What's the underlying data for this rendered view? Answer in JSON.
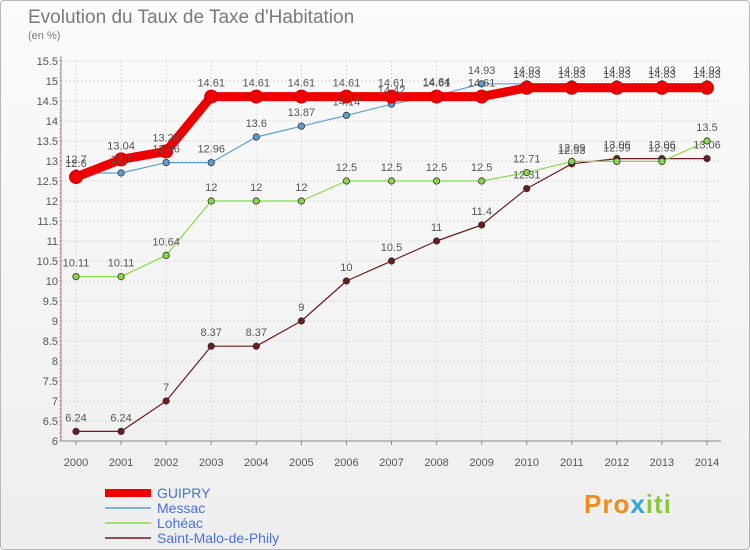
{
  "chart_data": {
    "type": "line",
    "title": "Evolution du Taux de Taxe d'Habitation",
    "subtitle": "(en %)",
    "x": [
      "2000",
      "2001",
      "2002",
      "2003",
      "2004",
      "2005",
      "2006",
      "2007",
      "2008",
      "2009",
      "2010",
      "2011",
      "2012",
      "2013",
      "2014"
    ],
    "ylim": [
      6,
      15.5
    ],
    "yticks": [
      "6",
      "6.5",
      "7",
      "7.5",
      "8",
      "8.5",
      "9",
      "9.5",
      "10",
      "10.5",
      "11",
      "11.5",
      "12",
      "12.5",
      "13",
      "13.5",
      "14",
      "14.5",
      "15",
      "15.5"
    ],
    "grid": true,
    "legend_position": "bottom-left",
    "series": [
      {
        "name": "GUIPRY",
        "color": "#ee0000",
        "values": [
          12.6,
          13.04,
          13.24,
          14.61,
          14.61,
          14.61,
          14.61,
          14.61,
          14.61,
          14.61,
          14.83,
          14.83,
          14.83,
          14.83,
          14.83
        ],
        "labels": [
          "12.6",
          "13.04",
          "13.24",
          "14.61",
          "14.61",
          "14.61",
          "14.61",
          "14.61",
          "14.61",
          "14.61",
          "14.83",
          "14.83",
          "14.83",
          "14.83",
          "14.83"
        ]
      },
      {
        "name": "Messac",
        "color": "#5b9fd1",
        "values": [
          12.7,
          12.7,
          12.96,
          12.96,
          13.6,
          13.87,
          14.14,
          14.42,
          14.64,
          14.93,
          14.93,
          14.93,
          14.93,
          14.93,
          14.93
        ],
        "labels": [
          "12.7",
          "12.7",
          "12.96",
          "12.96",
          "13.6",
          "13.87",
          "14.14",
          "14.42",
          "14.64",
          "14.93",
          "14.93",
          "14.93",
          "14.93",
          "14.93",
          "14.93"
        ]
      },
      {
        "name": "Lohéac",
        "color": "#88d84a",
        "values": [
          10.11,
          10.11,
          10.64,
          12,
          12,
          12,
          12.5,
          12.5,
          12.5,
          12.5,
          12.71,
          12.99,
          12.99,
          12.99,
          13.5
        ],
        "labels": [
          "10.11",
          "10.11",
          "10.64",
          "12",
          "12",
          "12",
          "12.5",
          "12.5",
          "12.5",
          "12.5",
          "12.71",
          "12.99",
          "12.99",
          "12.99",
          "13.5"
        ]
      },
      {
        "name": "Saint-Malo-de-Phily",
        "color": "#6b1d1d",
        "values": [
          6.24,
          6.24,
          7,
          8.37,
          8.37,
          9,
          10,
          10.5,
          11,
          11.4,
          12.31,
          12.93,
          13.06,
          13.06,
          13.06
        ],
        "labels": [
          "6.24",
          "6.24",
          "7",
          "8.37",
          "8.37",
          "9",
          "10",
          "10.5",
          "11",
          "11.4",
          "12.31",
          "12.93",
          "13.06",
          "13.06",
          "13.06"
        ]
      }
    ]
  },
  "logo": {
    "part1": "Pro",
    "part2": "x",
    "part3": "iti"
  }
}
